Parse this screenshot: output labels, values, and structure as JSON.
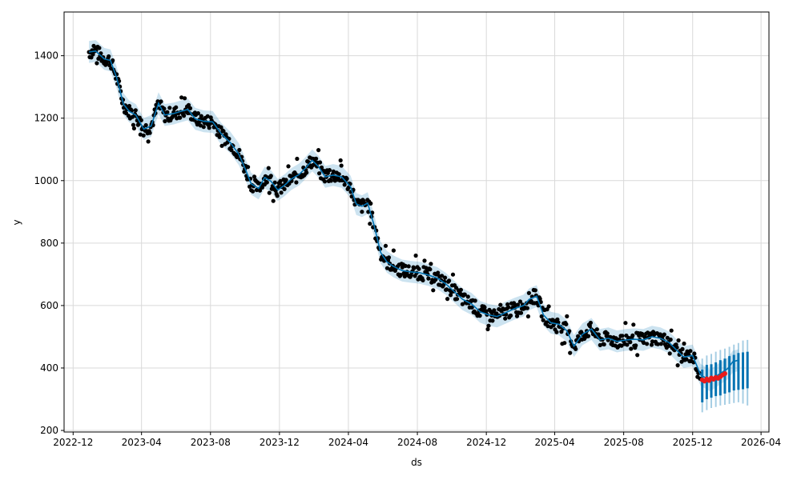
{
  "chart_data": {
    "type": "line",
    "xlabel": "ds",
    "ylabel": "y",
    "xlim": [
      "2022-11-15",
      "2026-04-15"
    ],
    "ylim": [
      195,
      1540
    ],
    "grid": true,
    "x_ticks": [
      "2022-12",
      "2023-04",
      "2023-08",
      "2023-12",
      "2024-04",
      "2024-08",
      "2024-12",
      "2025-04",
      "2025-08",
      "2025-12",
      "2026-04"
    ],
    "y_ticks": [
      200,
      400,
      600,
      800,
      1000,
      1200,
      1400
    ],
    "colors": {
      "actual": "#000000",
      "forecast_line": "#0072B2",
      "band": "#0072B2",
      "highlight": "#e81b1b",
      "grid": "#d9d9d9"
    },
    "forecast": {
      "x": [
        "2022-12-29",
        "2023-01-10",
        "2023-01-25",
        "2023-02-05",
        "2023-02-16",
        "2023-02-28",
        "2023-03-10",
        "2023-03-22",
        "2023-04-05",
        "2023-04-18",
        "2023-05-01",
        "2023-05-12",
        "2023-05-28",
        "2023-06-10",
        "2023-06-22",
        "2023-07-05",
        "2023-07-20",
        "2023-08-05",
        "2023-08-20",
        "2023-09-05",
        "2023-09-20",
        "2023-10-01",
        "2023-10-12",
        "2023-10-25",
        "2023-11-05",
        "2023-11-16",
        "2023-11-28",
        "2023-12-10",
        "2023-12-22",
        "2024-01-05",
        "2024-01-16",
        "2024-01-28",
        "2024-02-08",
        "2024-02-20",
        "2024-03-05",
        "2024-03-20",
        "2024-04-05",
        "2024-04-15",
        "2024-04-25",
        "2024-05-05",
        "2024-05-16",
        "2024-05-28",
        "2024-06-08",
        "2024-06-20",
        "2024-07-05",
        "2024-07-20",
        "2024-08-05",
        "2024-08-20",
        "2024-09-05",
        "2024-09-20",
        "2024-10-05",
        "2024-10-20",
        "2024-11-05",
        "2024-11-20",
        "2024-12-05",
        "2024-12-20",
        "2025-01-05",
        "2025-01-20",
        "2025-02-05",
        "2025-02-15",
        "2025-02-28",
        "2025-03-12",
        "2025-03-25",
        "2025-04-08",
        "2025-04-22",
        "2025-05-05",
        "2025-05-20",
        "2025-06-05",
        "2025-06-20",
        "2025-07-05",
        "2025-07-20",
        "2025-08-05",
        "2025-08-20",
        "2025-09-05",
        "2025-09-20",
        "2025-10-05",
        "2025-10-20",
        "2025-11-01",
        "2025-11-15",
        "2025-12-01",
        "2025-12-15",
        "2026-01-01",
        "2026-01-15",
        "2026-02-01",
        "2026-02-10",
        "2026-02-20"
      ],
      "y": [
        1412,
        1415,
        1390,
        1385,
        1330,
        1245,
        1222,
        1210,
        1165,
        1175,
        1248,
        1210,
        1215,
        1222,
        1228,
        1198,
        1190,
        1188,
        1150,
        1122,
        1085,
        1040,
        990,
        975,
        1010,
        998,
        970,
        985,
        1005,
        1020,
        1040,
        1065,
        1045,
        1012,
        1018,
        1012,
        980,
        925,
        918,
        928,
        860,
        770,
        740,
        725,
        712,
        708,
        705,
        698,
        688,
        670,
        645,
        620,
        605,
        580,
        570,
        565,
        578,
        590,
        600,
        620,
        630,
        570,
        545,
        540,
        520,
        470,
        508,
        525,
        490,
        495,
        485,
        490,
        492,
        490,
        500,
        495,
        482,
        460,
        435,
        440,
        378,
        360,
        378,
        398,
        420,
        425
      ],
      "band_halfwidth": 35
    },
    "forecast_interval": {
      "x": [
        "2025-12-18",
        "2025-12-26",
        "2026-01-03",
        "2026-01-11",
        "2026-01-19",
        "2026-01-27",
        "2026-02-04",
        "2026-02-12",
        "2026-02-20",
        "2026-02-28",
        "2026-03-08"
      ],
      "y_lower": [
        290,
        300,
        305,
        310,
        312,
        318,
        322,
        328,
        330,
        332,
        335
      ],
      "y_upper": [
        395,
        410,
        412,
        418,
        425,
        430,
        438,
        442,
        448,
        450,
        452
      ],
      "outer_lower": [
        258,
        265,
        272,
        275,
        280,
        282,
        285,
        288,
        290,
        286,
        280
      ],
      "outer_upper": [
        430,
        440,
        445,
        452,
        458,
        462,
        468,
        475,
        480,
        488,
        490
      ]
    },
    "recent_points": {
      "x": [
        "2025-12-18",
        "2025-12-22",
        "2025-12-26",
        "2025-12-30",
        "2026-01-03",
        "2026-01-07",
        "2026-01-11",
        "2026-01-15",
        "2026-01-19",
        "2026-01-23",
        "2026-01-27"
      ],
      "y": [
        362,
        358,
        365,
        360,
        368,
        364,
        370,
        367,
        372,
        378,
        382
      ]
    }
  }
}
